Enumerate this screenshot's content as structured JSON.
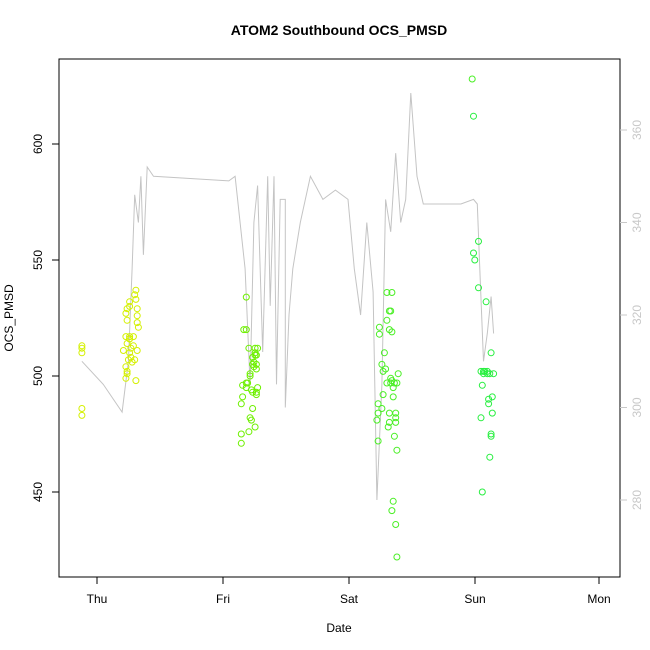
{
  "chart_data": {
    "type": "scatter",
    "title": "ATOM2 Southbound OCS_PMSD",
    "xlabel": "Date",
    "ylabel": "OCS_PMSD",
    "x_ticks": [
      "Thu",
      "Fri",
      "Sat",
      "Sun",
      "Mon"
    ],
    "xlim": [
      -0.12,
      4.16
    ],
    "y_ticks": [
      450,
      500,
      550,
      600
    ],
    "ylim": [
      412,
      635
    ],
    "y2_ticks": [
      280,
      300,
      320,
      340,
      360
    ],
    "y2lim": [
      262.7,
      373.2
    ],
    "grid": false,
    "point_colors": {
      "thu": "#d4f000",
      "fri": "#8ef000",
      "sat": "#6ef000",
      "sun": "#4aef25",
      "mon": "#28ef40"
    },
    "line_color": "#c4c4c4",
    "series": [
      {
        "kind": "points",
        "x": [
          -0.12,
          -0.12,
          -0.12,
          -0.12,
          -0.12,
          0.24,
          0.24,
          0.23,
          0.21,
          0.23,
          0.23,
          0.27,
          0.26,
          0.24,
          0.26,
          0.26,
          0.25,
          0.29,
          0.29,
          0.3,
          0.31,
          0.31,
          0.32,
          0.3,
          0.31,
          0.33,
          0.32,
          0.32,
          0.24,
          0.26,
          0.26,
          0.26,
          0.32,
          0.27,
          0.28,
          0.24,
          0.23
        ],
        "y": [
          510,
          512,
          513,
          486,
          483,
          501,
          502,
          499,
          511,
          504,
          517,
          512,
          510,
          514,
          517,
          516,
          507,
          513,
          517,
          507,
          498,
          537,
          529,
          535,
          533,
          521,
          523,
          526,
          529,
          530,
          532,
          516,
          511,
          508,
          506,
          524,
          527
        ]
      },
      {
        "kind": "points",
        "x": [
          1.19,
          1.19,
          1.17,
          1.16,
          1.16,
          1.15,
          1.15,
          1.15,
          1.21,
          1.22,
          1.22,
          1.2,
          1.19,
          1.23,
          1.24,
          1.24,
          1.24,
          1.26,
          1.26,
          1.27,
          1.28,
          1.27,
          1.27,
          1.25,
          1.25,
          1.24,
          1.26,
          1.23,
          1.22,
          1.19,
          1.21,
          1.27,
          1.27,
          1.28,
          1.26
        ],
        "y": [
          520,
          534,
          520,
          496,
          491,
          475,
          471,
          488,
          512,
          500,
          501,
          497,
          495,
          494,
          493,
          505,
          508,
          510,
          512,
          503,
          512,
          509,
          505,
          506,
          504,
          486,
          478,
          481,
          482,
          497,
          476,
          493,
          492,
          495,
          509
        ]
      },
      {
        "kind": "points",
        "x": [
          2.23,
          2.24,
          2.24,
          2.24,
          2.27,
          2.28,
          2.28,
          2.27,
          2.25,
          2.25,
          2.29,
          2.3,
          2.31,
          2.31,
          2.31,
          2.33,
          2.33,
          2.32,
          2.33,
          2.33,
          2.34,
          2.34,
          2.34,
          2.35,
          2.35,
          2.35,
          2.36,
          2.36,
          2.37,
          2.38,
          2.38,
          2.38,
          2.39,
          2.39,
          2.38,
          2.39,
          2.35,
          2.36,
          2.37,
          2.4
        ],
        "y": [
          481,
          472,
          488,
          484,
          486,
          492,
          502,
          505,
          518,
          521,
          510,
          503,
          497,
          536,
          524,
          484,
          480,
          478,
          520,
          528,
          528,
          499,
          497,
          498,
          536,
          519,
          491,
          495,
          474,
          482,
          484,
          480,
          468,
          422,
          436,
          497,
          442,
          446,
          497,
          501
        ]
      },
      {
        "kind": "points",
        "x": [
          2.99,
          3.0,
          3.0,
          3.01,
          3.04,
          3.04,
          3.06,
          3.07,
          3.08,
          3.09,
          3.1,
          3.11,
          3.11,
          3.12,
          3.13,
          3.14,
          3.15,
          3.14,
          3.13,
          3.12,
          3.14,
          3.15,
          3.16,
          3.06,
          3.07,
          3.08
        ],
        "y": [
          628,
          612,
          553,
          550,
          558,
          538,
          502,
          496,
          502,
          502,
          532,
          502,
          501,
          488,
          465,
          475,
          484,
          474,
          501,
          490,
          510,
          491,
          501,
          482,
          450,
          501
        ]
      },
      {
        "kind": "line",
        "x": [
          -0.12,
          0.05,
          0.2,
          0.25,
          0.28,
          0.3,
          0.33,
          0.35,
          0.37,
          0.4,
          0.45,
          1.05,
          1.1,
          1.18,
          1.22,
          1.25,
          1.28,
          1.32,
          1.36,
          1.38,
          1.41,
          1.43,
          1.46,
          1.5,
          1.5,
          1.53,
          1.56,
          1.62,
          1.7,
          1.8,
          1.9,
          2.0,
          2.05,
          2.1,
          2.15,
          2.2,
          2.23,
          2.27,
          2.3,
          2.34,
          2.38,
          2.42,
          2.46,
          2.5,
          2.55,
          2.6,
          2.7,
          2.8,
          2.9,
          3.0,
          3.03,
          3.05,
          3.08,
          3.11,
          3.14,
          3.16
        ],
        "y": [
          310,
          305,
          299,
          310,
          330,
          346,
          340,
          350,
          333,
          352,
          350,
          349,
          350,
          330,
          305,
          340,
          348,
          312,
          350,
          322,
          350,
          305,
          345,
          345,
          300,
          320,
          330,
          340,
          350,
          345,
          347,
          345,
          330,
          320,
          340,
          325,
          280,
          305,
          345,
          338,
          355,
          340,
          345,
          368,
          350,
          344,
          344,
          344,
          344,
          345,
          344,
          330,
          310,
          316,
          324,
          316
        ]
      }
    ]
  }
}
